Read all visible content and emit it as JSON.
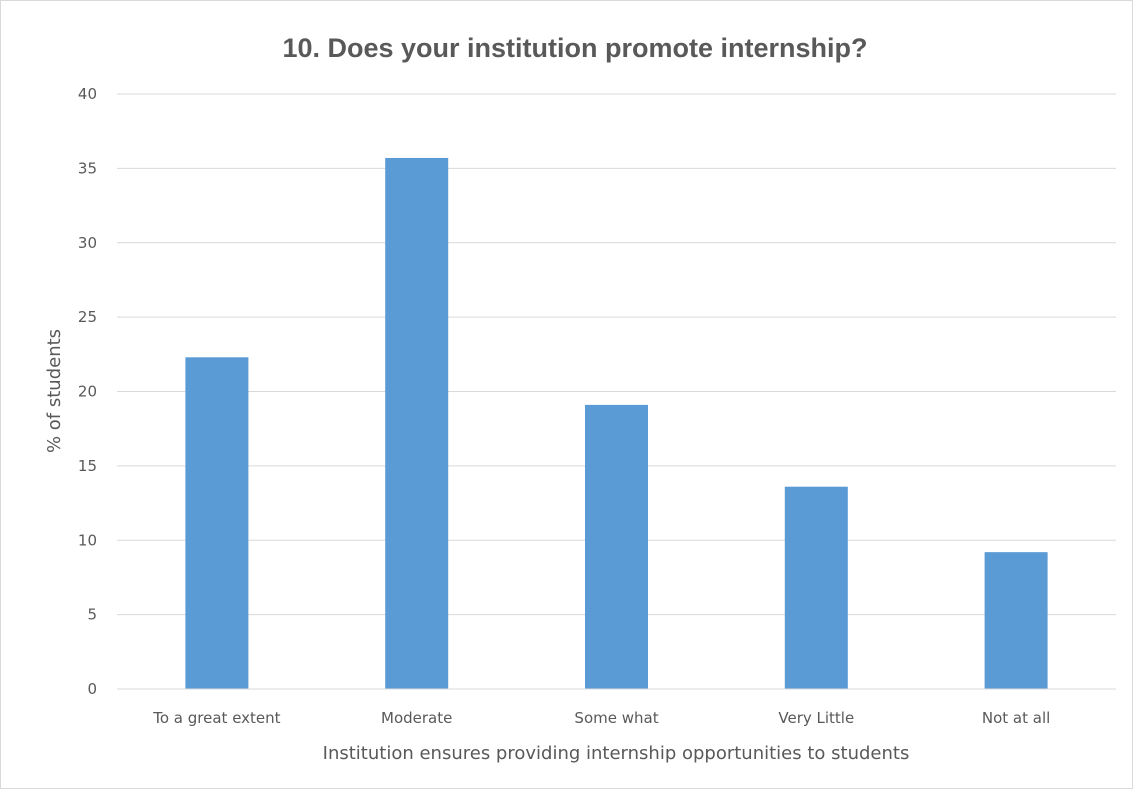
{
  "chart_data": {
    "type": "bar",
    "title": "10. Does your institution promote internship?",
    "xlabel": "Institution ensures providing internship opportunities to students",
    "ylabel": "% of students",
    "categories": [
      "To a great extent",
      "Moderate",
      "Some what",
      "Very Little",
      "Not at all"
    ],
    "values": [
      22.3,
      35.7,
      19.1,
      13.6,
      9.2
    ],
    "ylim": [
      0,
      40
    ],
    "yticks": [
      0,
      5,
      10,
      15,
      20,
      25,
      30,
      35,
      40
    ],
    "grid": true,
    "bar_color": "#5b9bd5",
    "grid_color": "#d9d9d9"
  }
}
